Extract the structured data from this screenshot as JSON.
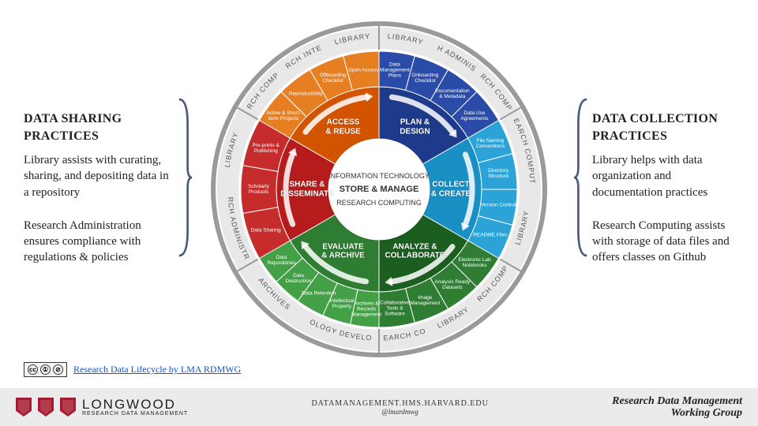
{
  "left": {
    "title": "DATA SHARING PRACTICES",
    "p1": "Library assists with curating, sharing, and depositing data in a repository",
    "p2": "Research Administration ensures compliance with regulations & policies"
  },
  "right": {
    "title": "DATA COLLECTION PRACTICES",
    "p1": "Library helps with data organization and documentation practices",
    "p2": "Research Computing assists with storage of data files and offers classes on Github"
  },
  "center": {
    "top": "INFORMATION TECHNOLOGY",
    "mid": "STORE & MANAGE",
    "bot": "RESEARCH COMPUTING"
  },
  "sectors": [
    {
      "label": "PLAN &\nDESIGN",
      "color": "#1e3a8a",
      "angleStart": -90,
      "angleEnd": -30,
      "outerColor": "#2b4ba8",
      "items": [
        "Data Management Plans",
        "Onboarding Checklist",
        "Documentation & Metadata",
        "Data Use Agreements"
      ],
      "ring": [
        "LIBRARY",
        "RESEARCH ADMINISTRATION",
        "RESEARCH COMPUTING"
      ]
    },
    {
      "label": "COLLECT\n& CREATE",
      "color": "#1a8fc4",
      "angleStart": -30,
      "angleEnd": 30,
      "outerColor": "#2ba3d6",
      "items": [
        "File Naming Conventions",
        "Directory Structure",
        "Version Control",
        "README Files"
      ],
      "ring": [
        "RESEARCH COMPUTING",
        "LIBRARY"
      ]
    },
    {
      "label": "ANALYZE &\nCOLLABORATE",
      "color": "#1b5e20",
      "angleStart": 30,
      "angleEnd": 90,
      "outerColor": "#2e7d32",
      "items": [
        "Electronic Lab Notebooks",
        "Analysis Ready Datasets",
        "Image Management",
        "Collaborative Tools & Software"
      ],
      "ring": [
        "RESEARCH COMPUTING",
        "LIBRARY",
        "RESEARCH CORES"
      ]
    },
    {
      "label": "EVALUATE\n& ARCHIVE",
      "color": "#2e7d32",
      "angleStart": 90,
      "angleEnd": 150,
      "outerColor": "#43a047",
      "items": [
        "Archives & Records Management",
        "Intellectual Property",
        "Data Retention",
        "Data Destruction",
        "Data Repositories"
      ],
      "ring": [
        "TECHNOLOGY DEVELOPMENT",
        "ARCHIVES"
      ]
    },
    {
      "label": "SHARE &\nDISSEMINATE",
      "color": "#b71c1c",
      "angleStart": 150,
      "angleEnd": 210,
      "outerColor": "#c72c2c",
      "items": [
        "Data Sharing",
        "Scholarly Products",
        "Pre-prints & Publishing"
      ],
      "ring": [
        "RESEARCH ADMINISTRATION",
        "LIBRARY"
      ]
    },
    {
      "label": "ACCESS\n& REUSE",
      "color": "#d35400",
      "angleStart": 210,
      "angleEnd": 270,
      "outerColor": "#e67e22",
      "items": [
        "Active & Short-term Projects",
        "Reproducibility",
        "Offboarding Checklist",
        "Open Access"
      ],
      "ring": [
        "RESEARCH COMPUTING",
        "RESEARCH INTEGRITY",
        "LIBRARY"
      ]
    }
  ],
  "radii": {
    "innerHub": 64,
    "innerSector": 130,
    "outerSector": 175,
    "ringInner": 178,
    "ringOuter": 205,
    "border": 210
  },
  "colors": {
    "ringBg": "#e8e8e8",
    "border": "#9a9a9a",
    "bracket": "#4a5a78"
  },
  "cc": {
    "text": "Research Data Lifecycle by LMA RDMWG",
    "href": "#"
  },
  "footer": {
    "longwood_big": "LONGWOOD",
    "longwood_small": "RESEARCH DATA MANAGEMENT",
    "center_url": "DATAMANAGEMENT.HMS.HARVARD.EDU",
    "center_handle": "@lmardmwg",
    "right1": "Research Data Management",
    "right2": "Working Group"
  }
}
